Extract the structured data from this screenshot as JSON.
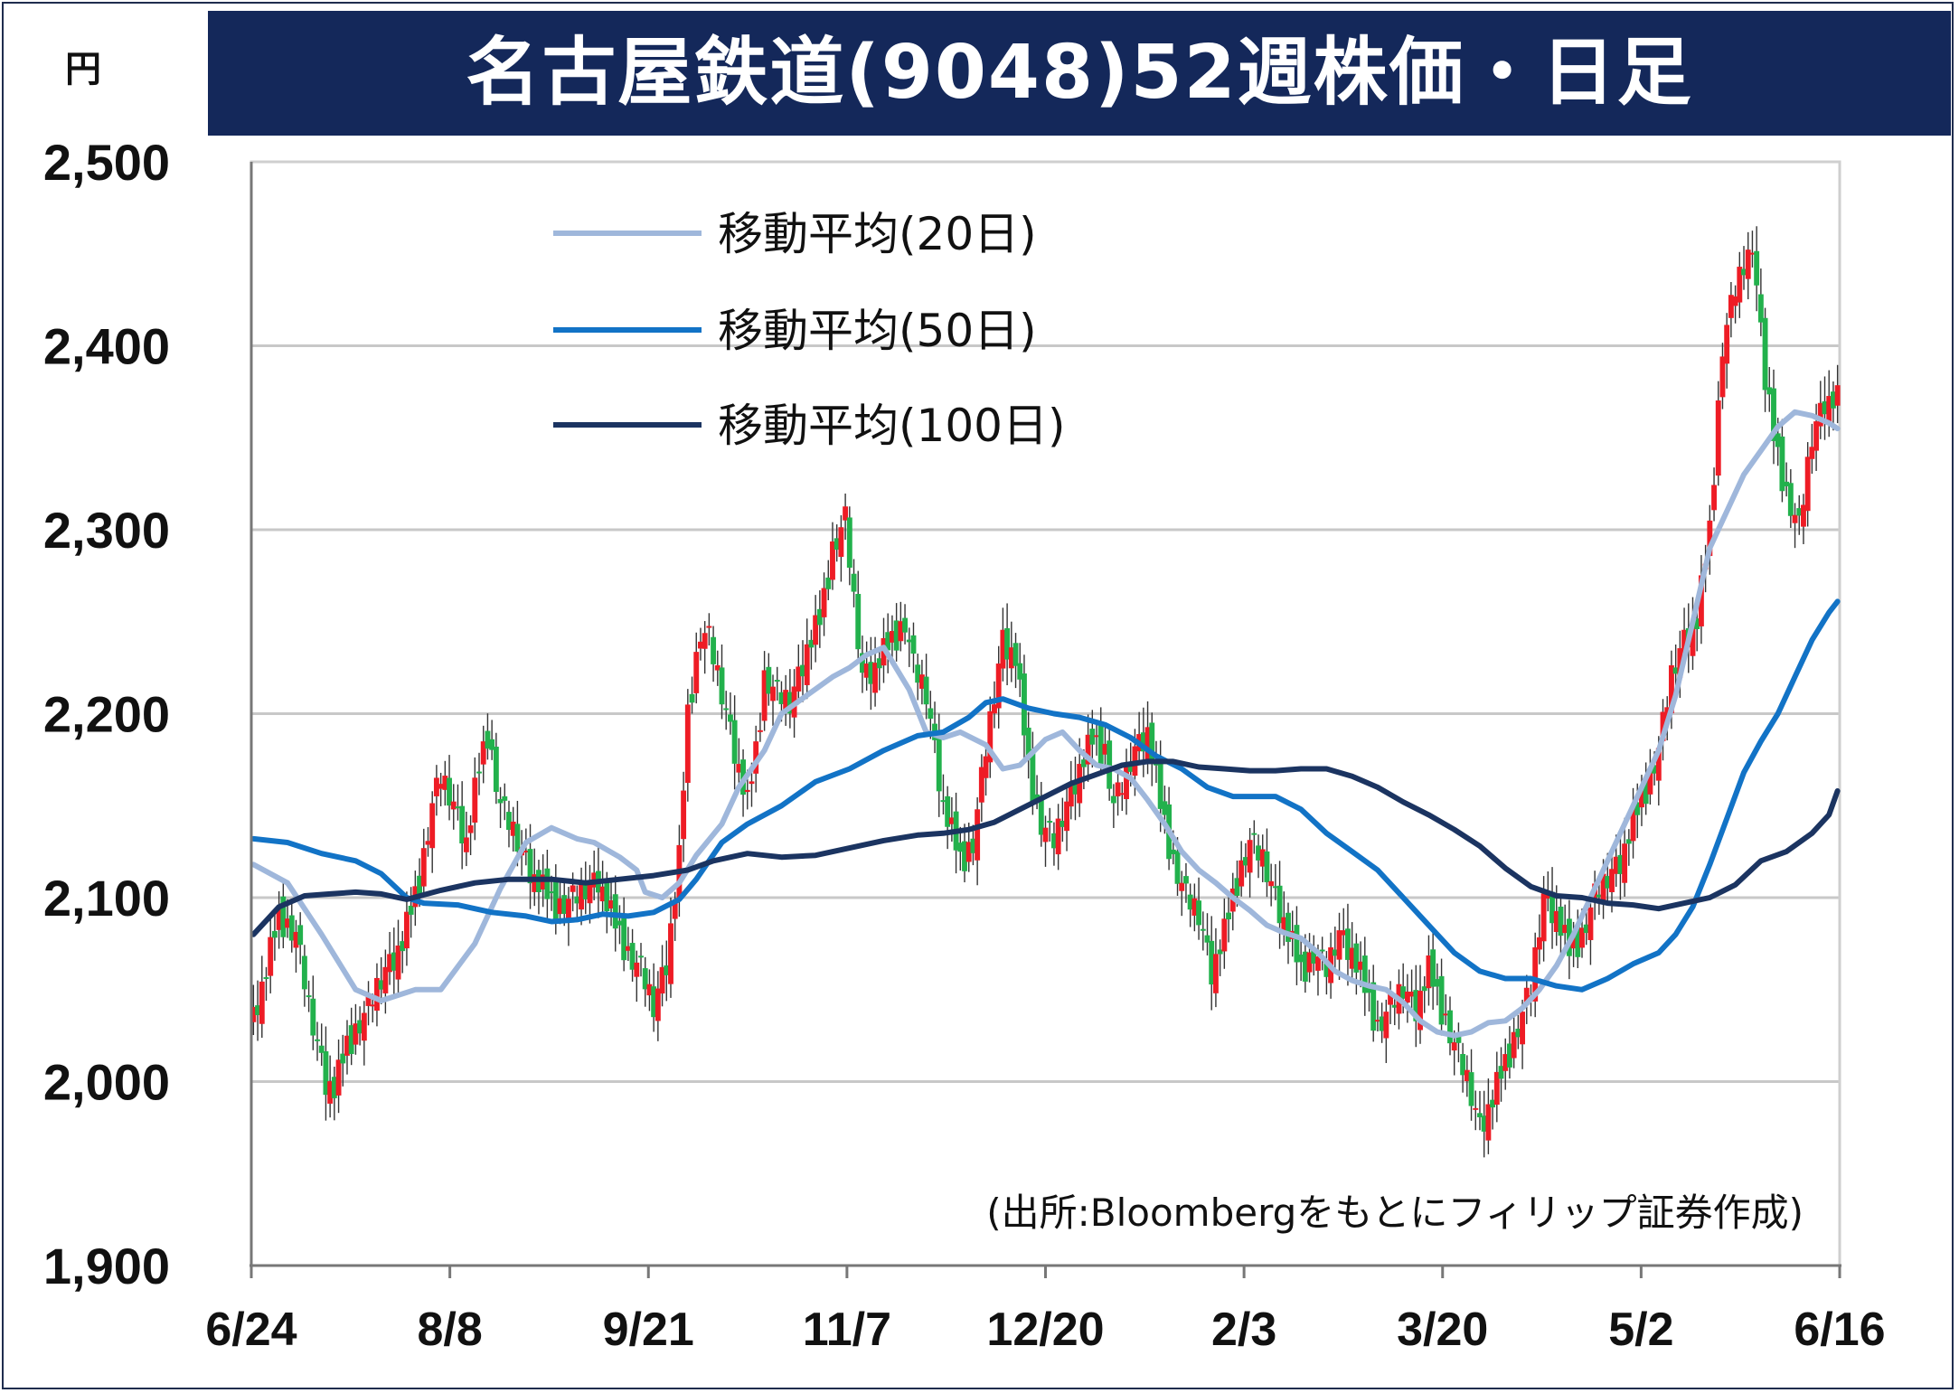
{
  "title": "名古屋鉄道(9048)52週株価・日足",
  "chart_data": {
    "type": "candlestick",
    "unit": "円",
    "ylim": [
      1900,
      2500
    ],
    "y_ticks": [
      "2,500",
      "2,400",
      "2,300",
      "2,200",
      "2,100",
      "2,000",
      "1,900"
    ],
    "x_ticks": [
      "6/24",
      "8/8",
      "9/21",
      "11/7",
      "12/20",
      "2/3",
      "3/20",
      "5/2",
      "6/16"
    ],
    "grid": true,
    "legend_position": "top-left",
    "source": "(出所:Bloombergをもとにフィリップ証券作成)",
    "colors": {
      "up": "#ee1c25",
      "down": "#22b14c",
      "ma20": "#9fb7db",
      "ma50": "#1273c6",
      "ma100": "#1b3461",
      "title_bg": "#14285a",
      "grid": "#c8c8c8"
    },
    "series": [
      {
        "name": "移動平均(20日)",
        "key": "ma20",
        "points": [
          [
            0,
            2118
          ],
          [
            8,
            2108
          ],
          [
            16,
            2080
          ],
          [
            24,
            2050
          ],
          [
            30,
            2044
          ],
          [
            38,
            2050
          ],
          [
            44,
            2050
          ],
          [
            52,
            2075
          ],
          [
            58,
            2105
          ],
          [
            64,
            2130
          ],
          [
            70,
            2138
          ],
          [
            76,
            2132
          ],
          [
            80,
            2130
          ],
          [
            86,
            2122
          ],
          [
            90,
            2115
          ],
          [
            92,
            2103
          ],
          [
            96,
            2100
          ],
          [
            100,
            2108
          ],
          [
            104,
            2123
          ],
          [
            110,
            2140
          ],
          [
            114,
            2160
          ],
          [
            120,
            2180
          ],
          [
            124,
            2200
          ],
          [
            130,
            2210
          ],
          [
            136,
            2220
          ],
          [
            140,
            2225
          ],
          [
            144,
            2232
          ],
          [
            148,
            2236
          ],
          [
            154,
            2213
          ],
          [
            158,
            2190
          ],
          [
            162,
            2187
          ],
          [
            166,
            2190
          ],
          [
            172,
            2183
          ],
          [
            176,
            2170
          ],
          [
            180,
            2172
          ],
          [
            186,
            2186
          ],
          [
            190,
            2190
          ],
          [
            194,
            2180
          ],
          [
            198,
            2172
          ],
          [
            202,
            2170
          ],
          [
            206,
            2165
          ],
          [
            210,
            2153
          ],
          [
            214,
            2140
          ],
          [
            218,
            2125
          ],
          [
            222,
            2115
          ],
          [
            226,
            2108
          ],
          [
            230,
            2100
          ],
          [
            234,
            2093
          ],
          [
            238,
            2085
          ],
          [
            242,
            2081
          ],
          [
            246,
            2078
          ],
          [
            250,
            2070
          ],
          [
            254,
            2060
          ],
          [
            258,
            2055
          ],
          [
            262,
            2052
          ],
          [
            266,
            2050
          ],
          [
            270,
            2043
          ],
          [
            274,
            2033
          ],
          [
            278,
            2027
          ],
          [
            282,
            2025
          ],
          [
            286,
            2027
          ],
          [
            290,
            2032
          ],
          [
            294,
            2033
          ],
          [
            298,
            2040
          ],
          [
            302,
            2050
          ],
          [
            306,
            2063
          ],
          [
            310,
            2080
          ],
          [
            314,
            2100
          ],
          [
            318,
            2120
          ],
          [
            322,
            2140
          ],
          [
            326,
            2160
          ],
          [
            330,
            2180
          ],
          [
            334,
            2210
          ],
          [
            338,
            2250
          ],
          [
            342,
            2290
          ],
          [
            346,
            2310
          ],
          [
            350,
            2330
          ],
          [
            354,
            2343
          ],
          [
            358,
            2356
          ],
          [
            362,
            2364
          ],
          [
            366,
            2362
          ],
          [
            370,
            2358
          ],
          [
            372,
            2355
          ]
        ]
      },
      {
        "name": "移動平均(50日)",
        "key": "ma50",
        "points": [
          [
            0,
            2132
          ],
          [
            8,
            2130
          ],
          [
            16,
            2124
          ],
          [
            24,
            2120
          ],
          [
            30,
            2113
          ],
          [
            36,
            2100
          ],
          [
            40,
            2097
          ],
          [
            48,
            2096
          ],
          [
            56,
            2092
          ],
          [
            64,
            2090
          ],
          [
            70,
            2087
          ],
          [
            76,
            2088
          ],
          [
            82,
            2091
          ],
          [
            88,
            2090
          ],
          [
            94,
            2092
          ],
          [
            100,
            2099
          ],
          [
            104,
            2110
          ],
          [
            110,
            2130
          ],
          [
            116,
            2140
          ],
          [
            124,
            2150
          ],
          [
            132,
            2163
          ],
          [
            140,
            2170
          ],
          [
            148,
            2180
          ],
          [
            156,
            2188
          ],
          [
            162,
            2190
          ],
          [
            168,
            2198
          ],
          [
            172,
            2206
          ],
          [
            176,
            2208
          ],
          [
            182,
            2203
          ],
          [
            188,
            2200
          ],
          [
            194,
            2198
          ],
          [
            200,
            2194
          ],
          [
            206,
            2187
          ],
          [
            212,
            2177
          ],
          [
            218,
            2170
          ],
          [
            224,
            2160
          ],
          [
            230,
            2155
          ],
          [
            236,
            2155
          ],
          [
            240,
            2155
          ],
          [
            246,
            2148
          ],
          [
            252,
            2135
          ],
          [
            258,
            2125
          ],
          [
            264,
            2115
          ],
          [
            270,
            2100
          ],
          [
            276,
            2085
          ],
          [
            282,
            2070
          ],
          [
            288,
            2060
          ],
          [
            294,
            2056
          ],
          [
            300,
            2056
          ],
          [
            306,
            2052
          ],
          [
            312,
            2050
          ],
          [
            318,
            2056
          ],
          [
            324,
            2064
          ],
          [
            330,
            2070
          ],
          [
            334,
            2080
          ],
          [
            338,
            2095
          ],
          [
            342,
            2118
          ],
          [
            346,
            2143
          ],
          [
            350,
            2168
          ],
          [
            354,
            2185
          ],
          [
            358,
            2200
          ],
          [
            362,
            2220
          ],
          [
            366,
            2240
          ],
          [
            370,
            2255
          ],
          [
            372,
            2261
          ]
        ]
      },
      {
        "name": "移動平均(100日)",
        "key": "ma100",
        "points": [
          [
            0,
            2080
          ],
          [
            6,
            2095
          ],
          [
            12,
            2101
          ],
          [
            18,
            2102
          ],
          [
            24,
            2103
          ],
          [
            30,
            2102
          ],
          [
            36,
            2099
          ],
          [
            44,
            2104
          ],
          [
            52,
            2108
          ],
          [
            60,
            2110
          ],
          [
            70,
            2110
          ],
          [
            78,
            2108
          ],
          [
            86,
            2110
          ],
          [
            94,
            2112
          ],
          [
            102,
            2115
          ],
          [
            108,
            2120
          ],
          [
            116,
            2124
          ],
          [
            124,
            2122
          ],
          [
            132,
            2123
          ],
          [
            140,
            2127
          ],
          [
            148,
            2131
          ],
          [
            156,
            2134
          ],
          [
            162,
            2135
          ],
          [
            168,
            2137
          ],
          [
            174,
            2141
          ],
          [
            180,
            2148
          ],
          [
            186,
            2155
          ],
          [
            192,
            2162
          ],
          [
            198,
            2167
          ],
          [
            204,
            2172
          ],
          [
            210,
            2174
          ],
          [
            216,
            2174
          ],
          [
            222,
            2171
          ],
          [
            228,
            2170
          ],
          [
            234,
            2169
          ],
          [
            240,
            2169
          ],
          [
            246,
            2170
          ],
          [
            252,
            2170
          ],
          [
            258,
            2166
          ],
          [
            264,
            2160
          ],
          [
            270,
            2152
          ],
          [
            276,
            2145
          ],
          [
            282,
            2137
          ],
          [
            288,
            2128
          ],
          [
            294,
            2116
          ],
          [
            300,
            2106
          ],
          [
            306,
            2101
          ],
          [
            312,
            2100
          ],
          [
            318,
            2097
          ],
          [
            324,
            2096
          ],
          [
            330,
            2094
          ],
          [
            336,
            2097
          ],
          [
            342,
            2100
          ],
          [
            348,
            2107
          ],
          [
            354,
            2120
          ],
          [
            360,
            2125
          ],
          [
            366,
            2135
          ],
          [
            370,
            2145
          ],
          [
            372,
            2158
          ]
        ]
      }
    ],
    "candles": {
      "days": 373,
      "keypoints": [
        [
          0,
          2035
        ],
        [
          3,
          2060
        ],
        [
          6,
          2090
        ],
        [
          10,
          2080
        ],
        [
          13,
          2040
        ],
        [
          17,
          2000
        ],
        [
          19,
          1995
        ],
        [
          22,
          2020
        ],
        [
          27,
          2040
        ],
        [
          31,
          2060
        ],
        [
          35,
          2075
        ],
        [
          39,
          2110
        ],
        [
          42,
          2150
        ],
        [
          44,
          2165
        ],
        [
          47,
          2150
        ],
        [
          50,
          2130
        ],
        [
          53,
          2170
        ],
        [
          55,
          2190
        ],
        [
          58,
          2150
        ],
        [
          62,
          2130
        ],
        [
          66,
          2110
        ],
        [
          71,
          2095
        ],
        [
          76,
          2100
        ],
        [
          81,
          2110
        ],
        [
          84,
          2090
        ],
        [
          88,
          2070
        ],
        [
          91,
          2060
        ],
        [
          94,
          2040
        ],
        [
          97,
          2065
        ],
        [
          100,
          2120
        ],
        [
          102,
          2200
        ],
        [
          105,
          2245
        ],
        [
          107,
          2240
        ],
        [
          110,
          2210
        ],
        [
          113,
          2180
        ],
        [
          116,
          2150
        ],
        [
          118,
          2180
        ],
        [
          120,
          2220
        ],
        [
          123,
          2210
        ],
        [
          126,
          2205
        ],
        [
          130,
          2235
        ],
        [
          133,
          2250
        ],
        [
          136,
          2290
        ],
        [
          139,
          2305
        ],
        [
          141,
          2260
        ],
        [
          143,
          2220
        ],
        [
          146,
          2225
        ],
        [
          150,
          2240
        ],
        [
          153,
          2250
        ],
        [
          155,
          2225
        ],
        [
          158,
          2210
        ],
        [
          160,
          2180
        ],
        [
          162,
          2150
        ],
        [
          166,
          2120
        ],
        [
          169,
          2130
        ],
        [
          172,
          2180
        ],
        [
          174,
          2210
        ],
        [
          176,
          2240
        ],
        [
          179,
          2230
        ],
        [
          182,
          2170
        ],
        [
          185,
          2140
        ],
        [
          188,
          2130
        ],
        [
          191,
          2150
        ],
        [
          194,
          2170
        ],
        [
          197,
          2185
        ],
        [
          200,
          2180
        ],
        [
          202,
          2150
        ],
        [
          204,
          2160
        ],
        [
          207,
          2180
        ],
        [
          210,
          2190
        ],
        [
          213,
          2150
        ],
        [
          216,
          2120
        ],
        [
          219,
          2100
        ],
        [
          222,
          2090
        ],
        [
          225,
          2060
        ],
        [
          228,
          2080
        ],
        [
          231,
          2110
        ],
        [
          234,
          2130
        ],
        [
          237,
          2120
        ],
        [
          240,
          2100
        ],
        [
          243,
          2080
        ],
        [
          246,
          2060
        ],
        [
          249,
          2070
        ],
        [
          252,
          2060
        ],
        [
          255,
          2080
        ],
        [
          258,
          2070
        ],
        [
          261,
          2050
        ],
        [
          264,
          2030
        ],
        [
          267,
          2040
        ],
        [
          270,
          2050
        ],
        [
          273,
          2040
        ],
        [
          276,
          2060
        ],
        [
          279,
          2040
        ],
        [
          282,
          2020
        ],
        [
          285,
          2000
        ],
        [
          288,
          1975
        ],
        [
          291,
          1990
        ],
        [
          294,
          2010
        ],
        [
          297,
          2030
        ],
        [
          300,
          2050
        ],
        [
          303,
          2100
        ],
        [
          306,
          2090
        ],
        [
          309,
          2070
        ],
        [
          312,
          2080
        ],
        [
          315,
          2100
        ],
        [
          318,
          2110
        ],
        [
          321,
          2120
        ],
        [
          324,
          2140
        ],
        [
          327,
          2160
        ],
        [
          330,
          2180
        ],
        [
          333,
          2220
        ],
        [
          336,
          2240
        ],
        [
          339,
          2250
        ],
        [
          342,
          2300
        ],
        [
          345,
          2400
        ],
        [
          348,
          2430
        ],
        [
          351,
          2450
        ],
        [
          353,
          2440
        ],
        [
          355,
          2380
        ],
        [
          357,
          2350
        ],
        [
          360,
          2320
        ],
        [
          363,
          2300
        ],
        [
          366,
          2350
        ],
        [
          369,
          2370
        ],
        [
          372,
          2370
        ]
      ],
      "pattern": [
        0.62,
        -0.8,
        0.3,
        -0.45,
        0.95,
        -0.2,
        0.55,
        -1.0,
        0.4,
        -0.65,
        0.15,
        0.85,
        -0.35,
        0.7,
        -0.55,
        0.25
      ]
    }
  }
}
